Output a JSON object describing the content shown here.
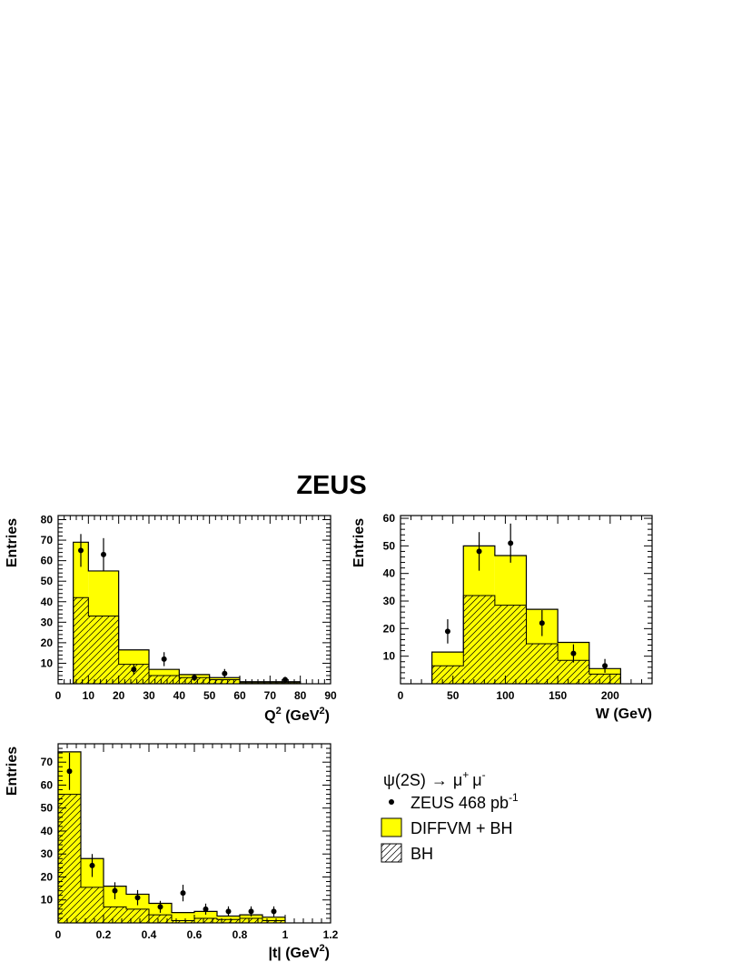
{
  "figure": {
    "title": "ZEUS",
    "colors": {
      "fill_total": "#ffff00",
      "hatch": "#000000",
      "line": "#000000",
      "data": "#000000"
    },
    "legend": {
      "header_greek": "ψ",
      "header_state": "(2S)",
      "header_arrow": "→",
      "header_mu1": "μ",
      "header_mu1_sup": "+",
      "header_mu2": "μ",
      "header_mu2_sup": "-",
      "data_label": "ZEUS 468 pb",
      "data_label_sup": "-1",
      "total_label": "DIFFVM + BH",
      "bh_label": "BH"
    }
  },
  "chart_data": [
    {
      "type": "bar",
      "panel": "q2",
      "ylabel": "Entries",
      "xlabel_base": "Q",
      "xlabel_sup": "2",
      "xlabel_unit": " (GeV",
      "xlabel_unit_sup": "2",
      "xlabel_close": ")",
      "xlim": [
        0,
        90
      ],
      "ylim": [
        0,
        82
      ],
      "xticks": [
        0,
        10,
        20,
        30,
        40,
        50,
        60,
        70,
        80,
        90
      ],
      "yticks": [
        10,
        20,
        30,
        40,
        50,
        60,
        70,
        80
      ],
      "bins": [
        [
          5,
          10
        ],
        [
          10,
          20
        ],
        [
          20,
          30
        ],
        [
          30,
          40
        ],
        [
          40,
          50
        ],
        [
          50,
          60
        ],
        [
          60,
          80
        ]
      ],
      "series": [
        {
          "name": "DIFFVM + BH",
          "values": [
            69,
            55,
            16.5,
            7,
            4.5,
            3,
            1
          ]
        },
        {
          "name": "BH",
          "values": [
            42,
            33,
            9.5,
            4,
            3,
            2,
            0.5
          ]
        }
      ],
      "points": [
        {
          "x": 7.5,
          "y": 65,
          "err": 8
        },
        {
          "x": 15,
          "y": 63,
          "err": 8
        },
        {
          "x": 25,
          "y": 7,
          "err": 2.6
        },
        {
          "x": 35,
          "y": 12,
          "err": 3.4
        },
        {
          "x": 45,
          "y": 3,
          "err": 1.7
        },
        {
          "x": 55,
          "y": 5,
          "err": 2.2
        },
        {
          "x": 75,
          "y": 2,
          "err": 1.4
        }
      ]
    },
    {
      "type": "bar",
      "panel": "w",
      "ylabel": "Entries",
      "xlabel": "W (GeV)",
      "xlim": [
        0,
        240
      ],
      "ylim": [
        0,
        61
      ],
      "xticks": [
        0,
        50,
        100,
        150,
        200
      ],
      "yticks": [
        10,
        20,
        30,
        40,
        50,
        60
      ],
      "bins": [
        [
          30,
          60
        ],
        [
          60,
          90
        ],
        [
          90,
          120
        ],
        [
          120,
          150
        ],
        [
          150,
          180
        ],
        [
          180,
          210
        ]
      ],
      "series": [
        {
          "name": "DIFFVM + BH",
          "values": [
            11.5,
            50,
            46.5,
            27,
            15,
            5.5
          ]
        },
        {
          "name": "BH",
          "values": [
            6.5,
            32,
            28.5,
            14.5,
            8.5,
            3.5
          ]
        }
      ],
      "points": [
        {
          "x": 45,
          "y": 19,
          "err": 4.4
        },
        {
          "x": 75,
          "y": 48,
          "err": 7
        },
        {
          "x": 105,
          "y": 51,
          "err": 7.1
        },
        {
          "x": 135,
          "y": 22,
          "err": 4.7
        },
        {
          "x": 165,
          "y": 11,
          "err": 3.3
        },
        {
          "x": 195,
          "y": 6.5,
          "err": 2.5
        }
      ]
    },
    {
      "type": "bar",
      "panel": "t",
      "ylabel": "Entries",
      "xlabel_base": "|t| (GeV",
      "xlabel_sup": "2",
      "xlabel_close": ")",
      "xlim": [
        0,
        1.2
      ],
      "ylim": [
        0,
        78
      ],
      "xticks": [
        0,
        0.2,
        0.4,
        0.6,
        0.8,
        1,
        1.2
      ],
      "xticklabels": [
        "0",
        "0.2",
        "0.4",
        "0.6",
        "0.8",
        "1",
        "1.2"
      ],
      "yticks": [
        10,
        20,
        30,
        40,
        50,
        60,
        70
      ],
      "bins": [
        [
          0,
          0.1
        ],
        [
          0.1,
          0.2
        ],
        [
          0.2,
          0.3
        ],
        [
          0.3,
          0.4
        ],
        [
          0.4,
          0.5
        ],
        [
          0.5,
          0.6
        ],
        [
          0.6,
          0.7
        ],
        [
          0.7,
          0.8
        ],
        [
          0.8,
          0.9
        ],
        [
          0.9,
          1.0
        ]
      ],
      "series": [
        {
          "name": "DIFFVM + BH",
          "values": [
            74.5,
            28,
            16,
            12.5,
            8.5,
            4.5,
            5,
            3,
            3.5,
            2.5
          ]
        },
        {
          "name": "BH",
          "values": [
            56,
            15.5,
            7,
            6,
            3.5,
            1,
            2,
            1.5,
            2,
            1
          ]
        }
      ],
      "points": [
        {
          "x": 0.05,
          "y": 66,
          "err": 8.1
        },
        {
          "x": 0.15,
          "y": 25,
          "err": 5
        },
        {
          "x": 0.25,
          "y": 14,
          "err": 3.7
        },
        {
          "x": 0.35,
          "y": 11,
          "err": 3.3
        },
        {
          "x": 0.45,
          "y": 7,
          "err": 2.6
        },
        {
          "x": 0.55,
          "y": 13,
          "err": 3.6
        },
        {
          "x": 0.65,
          "y": 6,
          "err": 2.4
        },
        {
          "x": 0.75,
          "y": 5,
          "err": 2.2
        },
        {
          "x": 0.85,
          "y": 5,
          "err": 2.2
        },
        {
          "x": 0.95,
          "y": 5,
          "err": 2.2
        }
      ]
    }
  ]
}
